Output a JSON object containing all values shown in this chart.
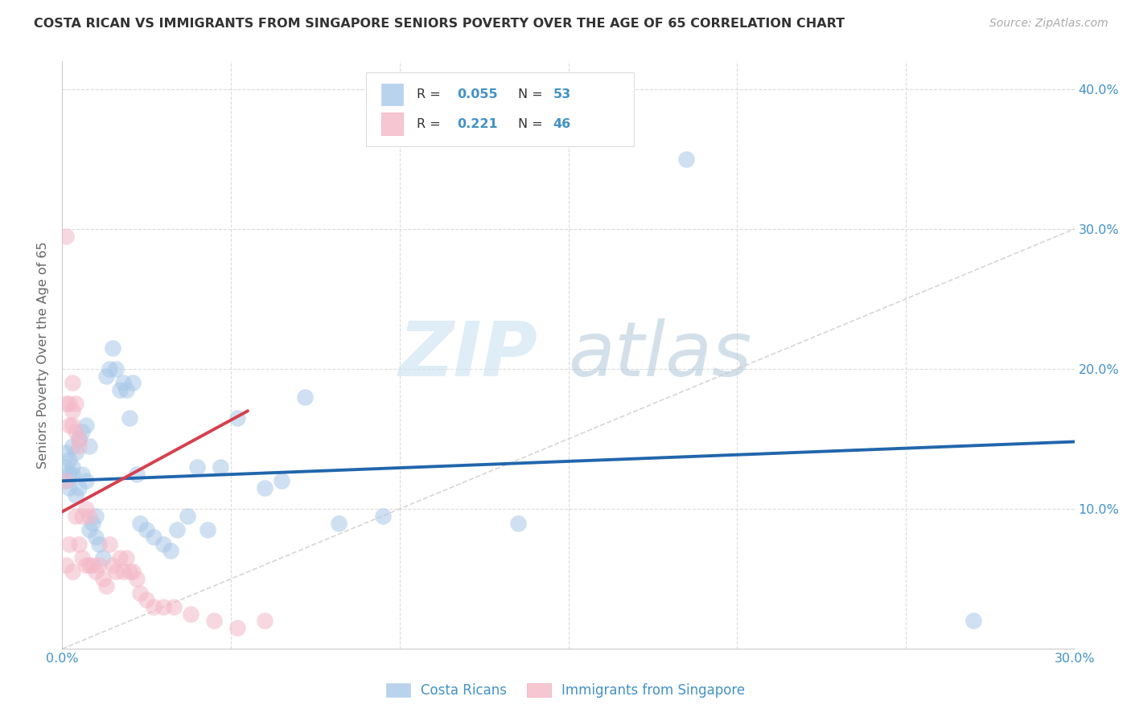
{
  "title": "COSTA RICAN VS IMMIGRANTS FROM SINGAPORE SENIORS POVERTY OVER THE AGE OF 65 CORRELATION CHART",
  "source": "Source: ZipAtlas.com",
  "ylabel": "Seniors Poverty Over the Age of 65",
  "xlim": [
    0.0,
    0.3
  ],
  "ylim": [
    0.0,
    0.42
  ],
  "x_ticks": [
    0.0,
    0.05,
    0.1,
    0.15,
    0.2,
    0.25,
    0.3
  ],
  "y_ticks": [
    0.0,
    0.1,
    0.2,
    0.3,
    0.4
  ],
  "x_tick_labels": [
    "0.0%",
    "",
    "",
    "",
    "",
    "",
    "30.0%"
  ],
  "right_ytick_labels": [
    "",
    "10.0%",
    "20.0%",
    "30.0%",
    "40.0%"
  ],
  "color_blue": "#a8c8e8",
  "color_pink": "#f4b8c8",
  "color_blue_text": "#4292c6",
  "color_line_blue": "#2166ac",
  "color_line_pink": "#d6404e",
  "watermark_zip": "ZIP",
  "watermark_atlas": "atlas",
  "background_color": "#ffffff",
  "blue_line_x": [
    0.0,
    0.3
  ],
  "blue_line_y": [
    0.12,
    0.148
  ],
  "pink_line_x": [
    0.0,
    0.055
  ],
  "pink_line_y": [
    0.098,
    0.17
  ],
  "costa_rican_x": [
    0.001,
    0.001,
    0.001,
    0.002,
    0.002,
    0.002,
    0.003,
    0.003,
    0.003,
    0.004,
    0.004,
    0.005,
    0.005,
    0.006,
    0.006,
    0.007,
    0.007,
    0.008,
    0.008,
    0.009,
    0.01,
    0.01,
    0.011,
    0.012,
    0.013,
    0.014,
    0.015,
    0.016,
    0.017,
    0.018,
    0.019,
    0.02,
    0.021,
    0.022,
    0.023,
    0.025,
    0.027,
    0.03,
    0.032,
    0.034,
    0.037,
    0.04,
    0.043,
    0.047,
    0.052,
    0.06,
    0.065,
    0.072,
    0.082,
    0.095,
    0.135,
    0.185,
    0.27
  ],
  "costa_rican_y": [
    0.13,
    0.14,
    0.12,
    0.125,
    0.115,
    0.135,
    0.145,
    0.125,
    0.13,
    0.14,
    0.11,
    0.15,
    0.115,
    0.155,
    0.125,
    0.16,
    0.12,
    0.145,
    0.085,
    0.09,
    0.095,
    0.08,
    0.075,
    0.065,
    0.195,
    0.2,
    0.215,
    0.2,
    0.185,
    0.19,
    0.185,
    0.165,
    0.19,
    0.125,
    0.09,
    0.085,
    0.08,
    0.075,
    0.07,
    0.085,
    0.095,
    0.13,
    0.085,
    0.13,
    0.165,
    0.115,
    0.12,
    0.18,
    0.09,
    0.095,
    0.09,
    0.35,
    0.02
  ],
  "singapore_x": [
    0.001,
    0.001,
    0.001,
    0.001,
    0.002,
    0.002,
    0.002,
    0.003,
    0.003,
    0.003,
    0.003,
    0.004,
    0.004,
    0.004,
    0.005,
    0.005,
    0.005,
    0.006,
    0.006,
    0.007,
    0.007,
    0.008,
    0.008,
    0.009,
    0.01,
    0.011,
    0.012,
    0.013,
    0.014,
    0.015,
    0.016,
    0.017,
    0.018,
    0.019,
    0.02,
    0.021,
    0.022,
    0.023,
    0.025,
    0.027,
    0.03,
    0.033,
    0.038,
    0.045,
    0.052,
    0.06
  ],
  "singapore_y": [
    0.295,
    0.175,
    0.12,
    0.06,
    0.175,
    0.16,
    0.075,
    0.19,
    0.17,
    0.16,
    0.055,
    0.175,
    0.155,
    0.095,
    0.15,
    0.145,
    0.075,
    0.095,
    0.065,
    0.1,
    0.06,
    0.095,
    0.06,
    0.06,
    0.055,
    0.06,
    0.05,
    0.045,
    0.075,
    0.06,
    0.055,
    0.065,
    0.055,
    0.065,
    0.055,
    0.055,
    0.05,
    0.04,
    0.035,
    0.03,
    0.03,
    0.03,
    0.025,
    0.02,
    0.015,
    0.02
  ]
}
